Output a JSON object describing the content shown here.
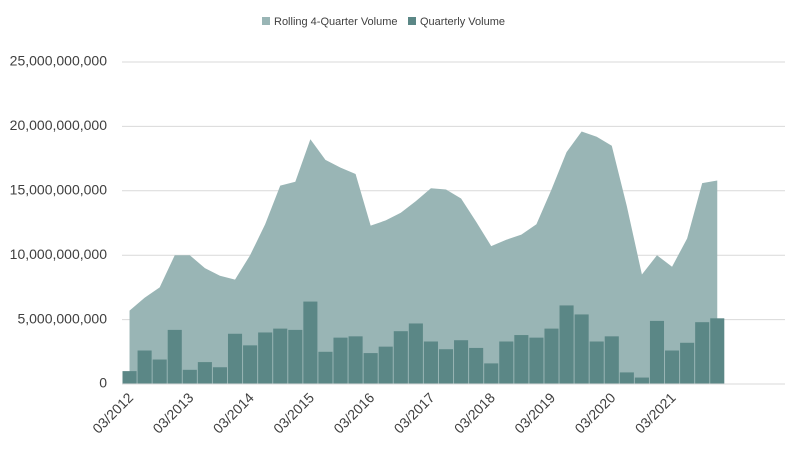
{
  "chart_data": {
    "type": "combo",
    "categories": [
      "03/2012",
      null,
      null,
      null,
      "03/2013",
      null,
      null,
      null,
      "03/2014",
      null,
      null,
      null,
      "03/2015",
      null,
      null,
      null,
      "03/2016",
      null,
      null,
      null,
      "03/2017",
      null,
      null,
      null,
      "03/2018",
      null,
      null,
      null,
      "03/2019",
      null,
      null,
      null,
      "03/2020",
      null,
      null,
      null,
      "03/2021",
      null,
      null,
      null
    ],
    "series": [
      {
        "name": "Rolling 4-Quarter Volume",
        "type": "area",
        "color": "#99b5b5",
        "values": [
          5700000000,
          6700000000,
          7500000000,
          10000000000,
          10000000000,
          9000000000,
          8400000000,
          8100000000,
          10000000000,
          12400000000,
          15400000000,
          15700000000,
          19000000000,
          17400000000,
          16800000000,
          16300000000,
          12300000000,
          12700000000,
          13300000000,
          14200000000,
          15200000000,
          15100000000,
          14400000000,
          12600000000,
          10700000000,
          11200000000,
          11600000000,
          12400000000,
          15100000000,
          18000000000,
          19600000000,
          19200000000,
          18500000000,
          13800000000,
          8500000000,
          10000000000,
          9100000000,
          11300000000,
          15600000000,
          15800000000
        ]
      },
      {
        "name": "Quarterly Volume",
        "type": "bar",
        "color": "#5b8786",
        "values": [
          1000000000,
          2600000000,
          1900000000,
          4200000000,
          1100000000,
          1700000000,
          1300000000,
          3900000000,
          3000000000,
          4000000000,
          4300000000,
          4200000000,
          6400000000,
          2500000000,
          3600000000,
          3700000000,
          2400000000,
          2900000000,
          4100000000,
          4700000000,
          3300000000,
          2700000000,
          3400000000,
          2800000000,
          1600000000,
          3300000000,
          3800000000,
          3600000000,
          4300000000,
          6100000000,
          5400000000,
          3300000000,
          3700000000,
          900000000,
          500000000,
          4900000000,
          2600000000,
          3200000000,
          4800000000,
          5100000000
        ]
      }
    ],
    "ylim": [
      0,
      25000000000
    ],
    "yticks": [
      {
        "value": 0,
        "label": "0"
      },
      {
        "value": 5000000000,
        "label": "5,000,000,000"
      },
      {
        "value": 10000000000,
        "label": "10,000,000,000"
      },
      {
        "value": 15000000000,
        "label": "15,000,000,000"
      },
      {
        "value": 20000000000,
        "label": "20,000,000,000"
      },
      {
        "value": 25000000000,
        "label": "25,000,000,000"
      }
    ],
    "grid": true,
    "legend": "top"
  }
}
